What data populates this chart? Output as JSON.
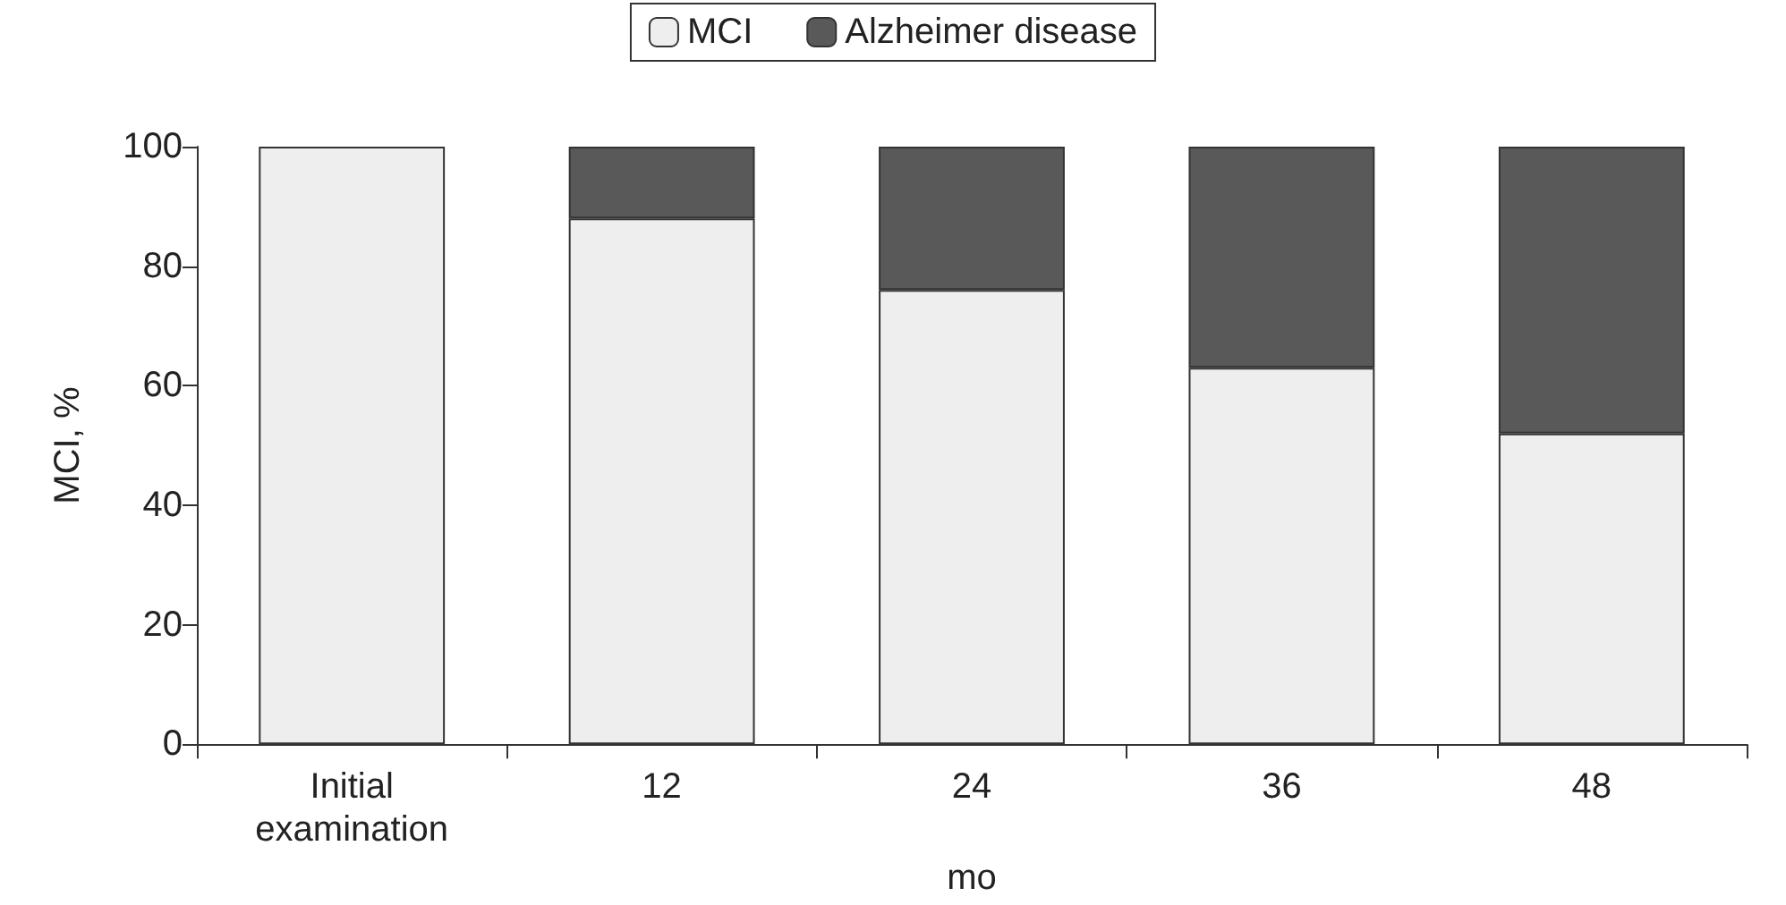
{
  "chart_data": {
    "type": "bar",
    "stacked": true,
    "xlabel": "mo",
    "ylabel": "MCI, %",
    "categories": [
      "Initial\nexamination",
      "12",
      "24",
      "36",
      "48"
    ],
    "series": [
      {
        "name": "MCI",
        "color": "#eeeeee",
        "values": [
          100,
          88,
          76,
          63,
          52
        ]
      },
      {
        "name": "Alzheimer disease",
        "color": "#595959",
        "values": [
          0,
          12,
          24,
          37,
          48
        ]
      }
    ],
    "ylim": [
      0,
      100
    ],
    "yticks": [
      0,
      20,
      40,
      60,
      80,
      100
    ],
    "grid": false,
    "legend": "top"
  }
}
